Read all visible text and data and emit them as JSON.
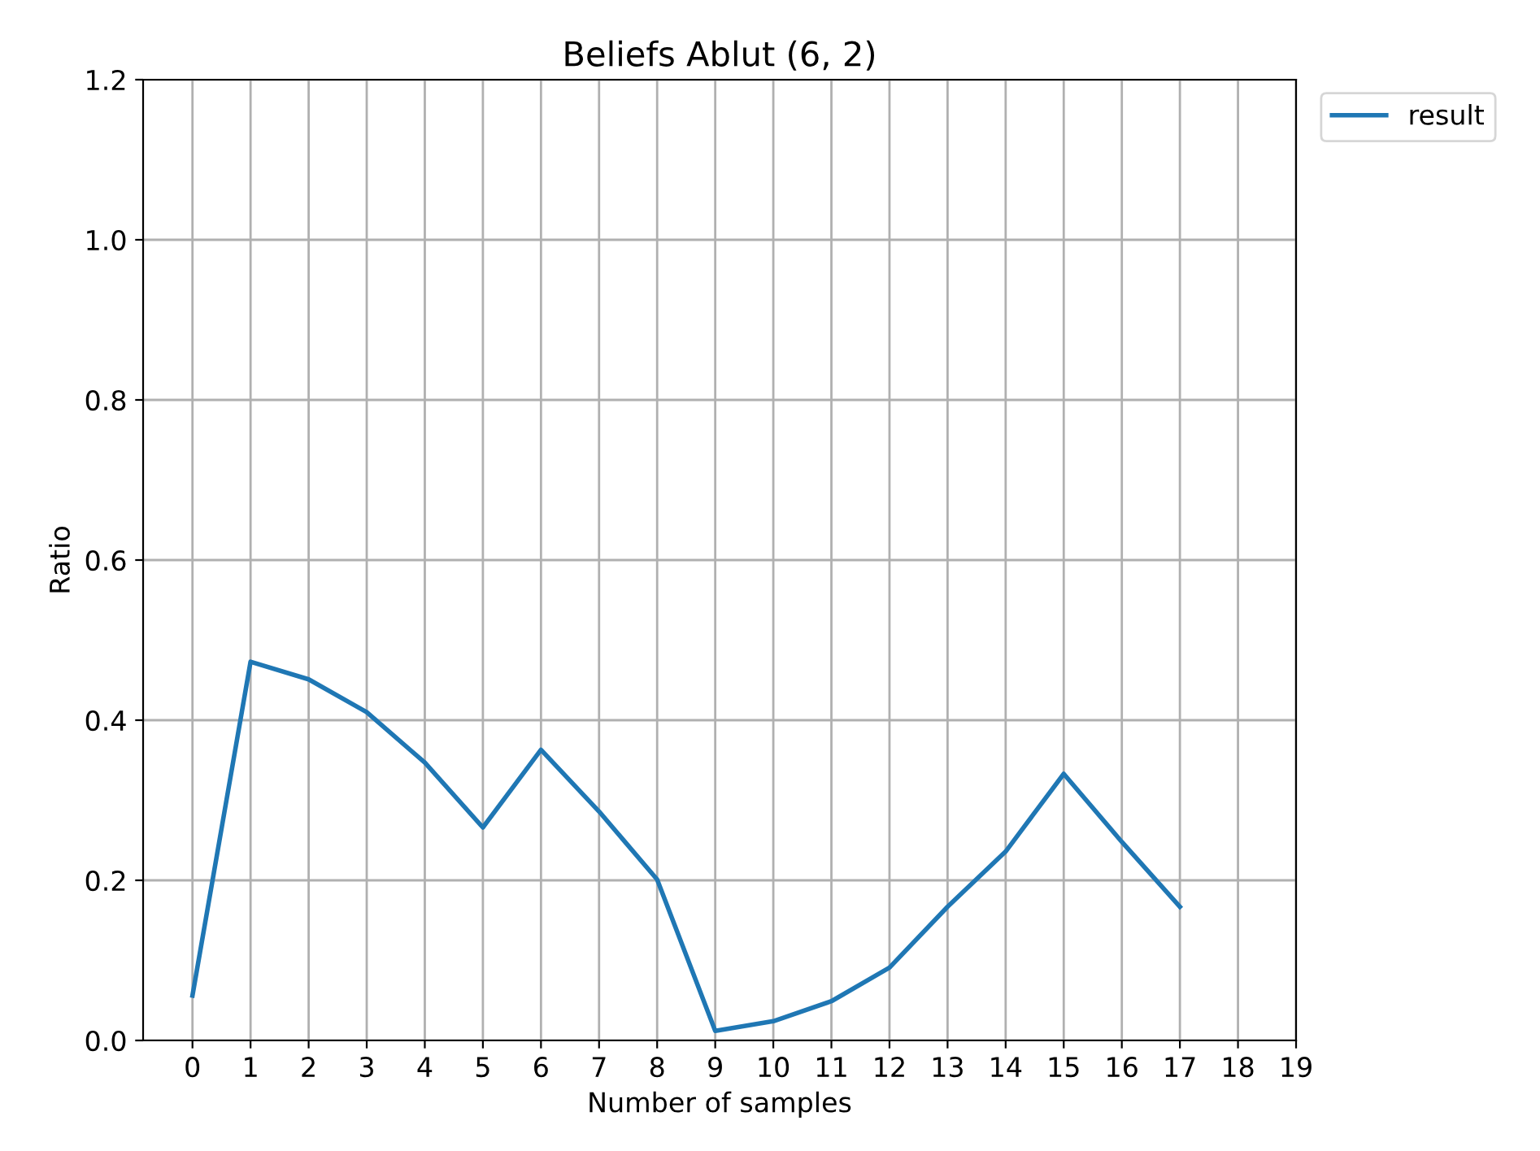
{
  "chart_data": {
    "type": "line",
    "title": "Beliefs Ablut (6, 2)",
    "xlabel": "Number of samples",
    "ylabel": "Ratio",
    "x": [
      0,
      1,
      2,
      3,
      4,
      5,
      6,
      7,
      8,
      9,
      10,
      11,
      12,
      13,
      14,
      15,
      16,
      17
    ],
    "series": [
      {
        "name": "result",
        "color": "#1f77b4",
        "values": [
          0.056,
          0.473,
          0.451,
          0.41,
          0.347,
          0.266,
          0.363,
          0.286,
          0.201,
          0.012,
          0.024,
          0.049,
          0.091,
          0.167,
          0.236,
          0.333,
          0.248,
          0.167
        ]
      }
    ],
    "xlim": [
      -0.85,
      19
    ],
    "xticks": [
      0,
      1,
      2,
      3,
      4,
      5,
      6,
      7,
      8,
      9,
      10,
      11,
      12,
      13,
      14,
      15,
      16,
      17,
      18,
      19
    ],
    "ylim": [
      0,
      1.2
    ],
    "yticks": [
      {
        "value": 0,
        "label": "0.0"
      },
      {
        "value": 0.2,
        "label": "0.2"
      },
      {
        "value": 0.4,
        "label": "0.4"
      },
      {
        "value": 0.6,
        "label": "0.6"
      },
      {
        "value": 0.8,
        "label": "0.8"
      },
      {
        "value": 1.0,
        "label": "1.0"
      },
      {
        "value": 1.2,
        "label": "1.2"
      }
    ],
    "grid": true,
    "legend": "outside top right",
    "marker": "none",
    "line_style": "solid"
  }
}
